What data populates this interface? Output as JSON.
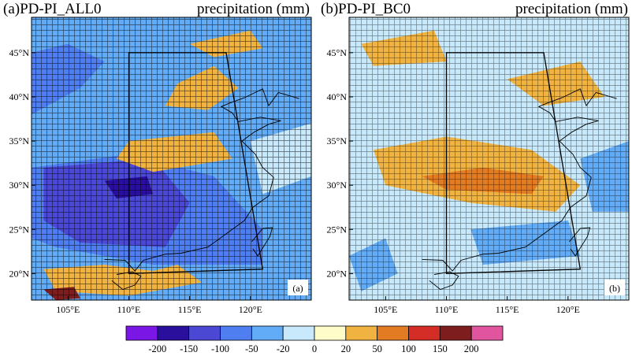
{
  "chart_data": [
    {
      "type": "heatmap",
      "id": "a",
      "title": "(a)PD-PI_ALL0",
      "subtitle": "precipitation (mm)",
      "corner_label": "(a)",
      "lon_range": [
        102,
        125
      ],
      "lat_range": [
        17,
        49
      ],
      "x_ticks": [
        "105°E",
        "110°E",
        "115°E",
        "120°E"
      ],
      "x_tick_values": [
        105,
        110,
        115,
        120
      ],
      "y_ticks": [
        "20°N",
        "25°N",
        "30°N",
        "35°N",
        "40°N",
        "45°N"
      ],
      "y_tick_values": [
        20,
        25,
        30,
        35,
        40,
        45
      ],
      "region_box": {
        "lon": [
          110,
          118,
          121,
          110
        ],
        "lat": [
          45,
          45,
          20.5,
          20
        ]
      },
      "regions": [
        {
          "lon": [
            102,
            125,
            125,
            102
          ],
          "lat": [
            17,
            17,
            49,
            49
          ],
          "value": -30
        },
        {
          "lon": [
            102,
            110,
            117,
            121,
            121,
            112,
            104,
            102
          ],
          "lat": [
            32,
            33.5,
            31,
            25,
            21,
            21,
            23,
            24
          ],
          "value": -70
        },
        {
          "lon": [
            103,
            112,
            115,
            113,
            106,
            103
          ],
          "lat": [
            32,
            33,
            28,
            23,
            23.5,
            26
          ],
          "value": -110
        },
        {
          "lon": [
            108,
            111.5,
            112,
            109
          ],
          "lat": [
            30.5,
            31,
            29,
            28.5
          ],
          "value": -160
        },
        {
          "lon": [
            102,
            106,
            108,
            105,
            102
          ],
          "lat": [
            38,
            41,
            44,
            46,
            45
          ],
          "value": -70
        },
        {
          "lon": [
            110,
            117,
            118.5,
            112,
            109
          ],
          "lat": [
            35,
            36,
            33,
            31.5,
            33
          ],
          "value": 35
        },
        {
          "lon": [
            114,
            117,
            119,
            116.5,
            113
          ],
          "lat": [
            41.5,
            43.5,
            41,
            38.5,
            39
          ],
          "value": 45
        },
        {
          "lon": [
            115,
            120,
            121,
            117
          ],
          "lat": [
            46,
            47.5,
            45.5,
            44.5
          ],
          "value": 35
        },
        {
          "lon": [
            103,
            108,
            112,
            114,
            116,
            110,
            104
          ],
          "lat": [
            20.5,
            21,
            20.3,
            21,
            19,
            17.5,
            18
          ],
          "value": 45
        },
        {
          "lon": [
            120,
            125,
            125,
            121
          ],
          "lat": [
            35,
            37,
            31,
            29
          ],
          "value": -5
        },
        {
          "lon": [
            103,
            105.5,
            106,
            104
          ],
          "lat": [
            18.2,
            18.5,
            17.2,
            17
          ],
          "value": 170
        }
      ]
    },
    {
      "type": "heatmap",
      "id": "b",
      "title": "(b)PD-PI_BC0",
      "subtitle": "precipitation (mm)",
      "corner_label": "(b)",
      "lon_range": [
        102,
        125
      ],
      "lat_range": [
        17,
        49
      ],
      "x_ticks": [
        "105°E",
        "110°E",
        "115°E",
        "120°E"
      ],
      "x_tick_values": [
        105,
        110,
        115,
        120
      ],
      "y_ticks": [
        "20°N",
        "25°N",
        "30°N",
        "35°N",
        "40°N",
        "45°N"
      ],
      "y_tick_values": [
        20,
        25,
        30,
        35,
        40,
        45
      ],
      "region_box": {
        "lon": [
          110,
          118,
          121,
          110
        ],
        "lat": [
          45,
          45,
          20.5,
          20
        ]
      },
      "regions": [
        {
          "lon": [
            102,
            125,
            125,
            102
          ],
          "lat": [
            17,
            17,
            49,
            49
          ],
          "value": -10
        },
        {
          "lon": [
            104,
            110,
            117,
            121,
            119,
            112,
            105
          ],
          "lat": [
            34,
            35.5,
            34,
            30,
            27,
            28,
            30
          ],
          "value": 35
        },
        {
          "lon": [
            108,
            113,
            118,
            117,
            110
          ],
          "lat": [
            31,
            32,
            31,
            29,
            29.5
          ],
          "value": 70
        },
        {
          "lon": [
            102,
            105,
            106,
            103
          ],
          "lat": [
            22,
            24,
            20,
            18
          ],
          "value": -40
        },
        {
          "lon": [
            112,
            120,
            121,
            113
          ],
          "lat": [
            25,
            26,
            22,
            21
          ],
          "value": -30
        },
        {
          "lon": [
            115,
            121,
            123,
            118
          ],
          "lat": [
            42,
            44,
            40,
            39
          ],
          "value": 30
        },
        {
          "lon": [
            103,
            109,
            110,
            104
          ],
          "lat": [
            46,
            47.5,
            44,
            43.5
          ],
          "value": 30
        },
        {
          "lon": [
            121,
            125,
            125,
            122
          ],
          "lat": [
            33,
            35,
            27,
            27
          ],
          "value": -30
        }
      ]
    }
  ],
  "colorbar": {
    "levels": [
      "-200",
      "-150",
      "-100",
      "-50",
      "-20",
      "0",
      "20",
      "50",
      "100",
      "150",
      "200"
    ],
    "colors": [
      "#7b17e6",
      "#2a0f9c",
      "#4b48d3",
      "#4f7ef0",
      "#62abf6",
      "#c7e9fb",
      "#fefdc9",
      "#f0b240",
      "#e37b22",
      "#d42d25",
      "#7e1d1d",
      "#e0559e"
    ]
  },
  "coast_color": "#000000"
}
